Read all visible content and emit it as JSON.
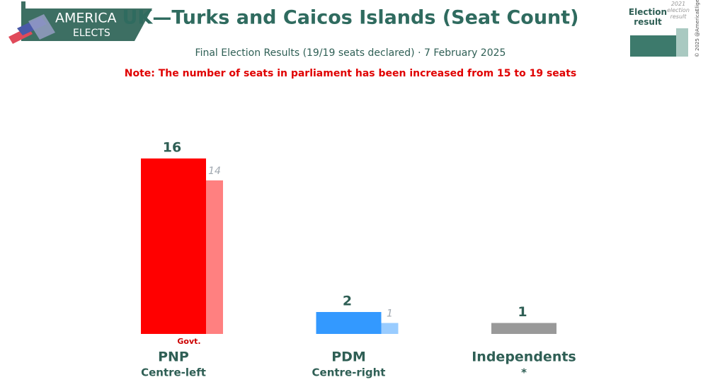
{
  "branding": {
    "line1": "AMERICA",
    "line2": "ELECTS",
    "copyright": "© 2025 @AmericaElige"
  },
  "chart_data": {
    "type": "bar",
    "title": "UK—Turks and Caicos Islands (Seat Count)",
    "subtitle": "Final Election Results (19/19 seats declared) · 7 February 2025",
    "note": "Note: The number of seats in parliament has been increased from 15 to 19 seats",
    "categories": [
      "PNP",
      "PDM",
      "Independents"
    ],
    "category_subtitles": [
      "Centre-left",
      "Centre-right",
      "*"
    ],
    "annotation": "Govt.",
    "series": [
      {
        "name": "Election result",
        "color": "#3d7a6c",
        "colors": [
          "#ff0000",
          "#3399ff",
          "#999999"
        ],
        "values": [
          16,
          2,
          1
        ]
      },
      {
        "name": "2021 election result",
        "color": "#a9c9c1",
        "colors": [
          "#ff8080",
          "#99ccff",
          "#cccccc"
        ],
        "values": [
          14,
          1,
          null
        ]
      }
    ]
  }
}
